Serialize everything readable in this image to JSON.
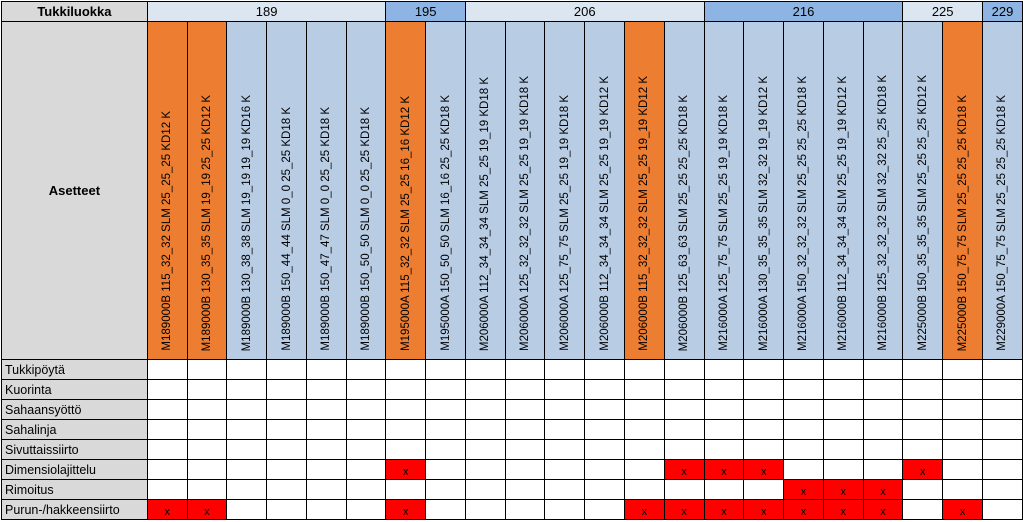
{
  "header_label": "Tukkiluokka",
  "asetteet_label": "Asetteet",
  "colors": {
    "group_light": "#dce6f1",
    "group_dark": "#8db4e2",
    "setting_blue": "#b8cce4",
    "setting_orange": "#ed7d31",
    "mark_red": "#ff0000",
    "label_gray": "#d9d9d9"
  },
  "groups": [
    {
      "label": "189",
      "span": 6,
      "style": "light"
    },
    {
      "label": "195",
      "span": 2,
      "style": "dark"
    },
    {
      "label": "206",
      "span": 6,
      "style": "light"
    },
    {
      "label": "216",
      "span": 5,
      "style": "dark"
    },
    {
      "label": "225",
      "span": 2,
      "style": "light"
    },
    {
      "label": "229",
      "span": 1,
      "style": "dark"
    }
  ],
  "settings": [
    {
      "label": "M189000B 115_32_32 SLM 25_25_25 KD12 K",
      "color": "orange"
    },
    {
      "label": "M189000B 130_35_35 SLM 19_19 25_25 KD12 K",
      "color": "orange"
    },
    {
      "label": "M189000B 130_38_38 SLM 19_19 19_19 KD16 K",
      "color": "blue"
    },
    {
      "label": "M189000B 150_44_44 SLM 0_0 25_25 KD18 K",
      "color": "blue"
    },
    {
      "label": "M189000B 150_47_47 SLM 0_0 25_25 KD18 K",
      "color": "blue"
    },
    {
      "label": "M189000B 150_50_50 SLM 0_0 25_25 KD18 K",
      "color": "blue"
    },
    {
      "label": "M195000A 115_32_32 SLM 25_25 16_16 KD12 K",
      "color": "orange"
    },
    {
      "label": "M195000A 150_50_50 SLM 16_16 25_25 KD18 K",
      "color": "blue"
    },
    {
      "label": "M206000A 112_34_34_34 SLM 25_25 19_19 KD18 K",
      "color": "blue"
    },
    {
      "label": "M206000A 125_32_32_32 SLM 25_25 19_19 KD18 K",
      "color": "blue"
    },
    {
      "label": "M206000A 125_75_75 SLM 25_25 19_19 KD18 K",
      "color": "blue"
    },
    {
      "label": "M206000B 112_34_34_34 SLM 25_25 19_19 KD12 K",
      "color": "blue"
    },
    {
      "label": "M206000B 115_32_32_32 SLM 25_25 19_19 KD12 K",
      "color": "orange"
    },
    {
      "label": "M206000B 125_63_63 SLM 25_25 25_25 KD18 K",
      "color": "blue"
    },
    {
      "label": "M216000A 125_75_75 SLM 25_25 19_19 KD18 K",
      "color": "blue"
    },
    {
      "label": "M216000A 130_35_35_35 SLM 32_32 19_19 KD12 K",
      "color": "blue"
    },
    {
      "label": "M216000A 150_32_32_32 SLM 25_25 25_25 KD18 K",
      "color": "blue"
    },
    {
      "label": "M216000B 112_34_34_34 SLM 25_25 19_19 KD12 K",
      "color": "blue"
    },
    {
      "label": "M216000B 125_32_32_32 SLM 32_32 25_25 KD18 K",
      "color": "blue"
    },
    {
      "label": "M225000B 150_35_35_35 SLM 25_25 25_25 KD12 K",
      "color": "blue"
    },
    {
      "label": "M225000B 150_75_75 SLM 25_25 25_25 KD18 K",
      "color": "orange"
    },
    {
      "label": "M229000A 150_75_75 SLM 25_25 25_25 KD18 K",
      "color": "blue"
    }
  ],
  "rows": [
    {
      "label": "Tukkipöytä",
      "marks": []
    },
    {
      "label": "Kuorinta",
      "marks": []
    },
    {
      "label": "Sahaansyöttö",
      "marks": []
    },
    {
      "label": "Sahalinja",
      "marks": []
    },
    {
      "label": "Sivuttaissiirto",
      "marks": []
    },
    {
      "label": "Dimensiolajittelu",
      "marks": [
        6,
        13,
        14,
        15,
        19
      ]
    },
    {
      "label": "Rimoitus",
      "marks": [
        16,
        17,
        18
      ]
    },
    {
      "label": "Purun-/hakkeensiirto",
      "marks": [
        0,
        1,
        6,
        12,
        13,
        14,
        15,
        16,
        17,
        18,
        20
      ]
    }
  ],
  "mark_text": "x"
}
